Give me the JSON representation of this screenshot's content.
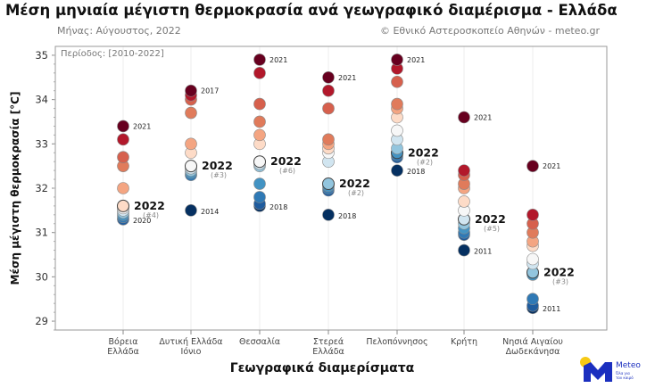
{
  "title": "Μέση μηνιαία μέγιστη θερμοκρασία ανά γεωγραφικό διαμέρισμα - Ελλάδα",
  "subtitle_left": "Μήνας: Αύγουστος, 2022",
  "subtitle_right": "© Εθνικό Αστεροσκοπείο Αθηνών - meteo.gr",
  "logo": {
    "text": "Meteo",
    "tagline": "Όλα για τον καιρό"
  },
  "chart_data": {
    "type": "scatter",
    "period_label": "Περίοδος: [2010-2022]",
    "xlabel": "Γεωγραφικά διαμερίσματα",
    "ylabel": "Μέση μέγιστη θερμοκρασία [°C]",
    "ylim": [
      28.8,
      35.2
    ],
    "yticks": [
      29,
      30,
      31,
      32,
      33,
      34,
      35
    ],
    "grid": "vertical",
    "palette_low_to_high": [
      "#053061",
      "#1f5c9e",
      "#2f79b5",
      "#4393c3",
      "#92c5de",
      "#d1e5f0",
      "#f7f7f7",
      "#fddbc7",
      "#f4a582",
      "#e07b5b",
      "#d6604d",
      "#b2182b",
      "#67001f"
    ],
    "highlight_color": "#111111",
    "categories": [
      {
        "label": [
          "Βόρεια",
          "Ελλάδα"
        ],
        "values": [
          33.4,
          33.1,
          32.7,
          32.5,
          32.0,
          31.6,
          31.55,
          31.5,
          31.45,
          31.4,
          31.35,
          31.3,
          31.3
        ],
        "max_year": "2021",
        "min_year": "2020",
        "value_2022": 31.6,
        "rank_2022": "(#4)"
      },
      {
        "label": [
          "Δυτική Ελλάδα",
          "Ιόνιο"
        ],
        "values": [
          34.2,
          34.1,
          34.0,
          33.7,
          33.0,
          32.8,
          32.5,
          32.45,
          32.4,
          32.35,
          32.3,
          32.3,
          31.5
        ],
        "max_year": "2017",
        "min_year": "2014",
        "value_2022": 32.5,
        "rank_2022": "(#3)"
      },
      {
        "label": [
          "Θεσσαλία"
        ],
        "values": [
          34.9,
          34.6,
          33.9,
          33.5,
          33.2,
          33.0,
          32.6,
          32.55,
          32.5,
          32.1,
          31.8,
          31.65,
          31.6
        ],
        "max_year": "2021",
        "min_year": "2018",
        "value_2022": 32.6,
        "rank_2022": "(#6)"
      },
      {
        "label": [
          "Στερεά",
          "Ελλάδα"
        ],
        "values": [
          34.5,
          34.2,
          33.8,
          33.1,
          33.0,
          32.9,
          32.8,
          32.6,
          32.1,
          32.05,
          32.0,
          31.95,
          31.4
        ],
        "max_year": "2021",
        "min_year": "2018",
        "value_2022": 32.1,
        "rank_2022": "(#2)"
      },
      {
        "label": [
          "Πελοπόννησος"
        ],
        "values": [
          34.9,
          34.7,
          34.4,
          33.9,
          33.8,
          33.6,
          33.3,
          33.1,
          32.9,
          32.8,
          32.75,
          32.7,
          32.4
        ],
        "max_year": "2021",
        "min_year": "2018",
        "value_2022": 32.8,
        "rank_2022": "(#2)"
      },
      {
        "label": [
          "Κρήτη"
        ],
        "values": [
          33.6,
          32.4,
          32.3,
          32.1,
          32.0,
          31.7,
          31.5,
          31.3,
          31.2,
          31.1,
          31.0,
          30.95,
          30.6
        ],
        "max_year": "2021",
        "min_year": "2011",
        "value_2022": 31.3,
        "rank_2022": "(#5)"
      },
      {
        "label": [
          "Νησιά Αιγαίου",
          "Δωδεκάνησα"
        ],
        "values": [
          32.5,
          31.4,
          31.2,
          31.0,
          30.8,
          30.7,
          30.4,
          30.3,
          30.1,
          30.05,
          29.5,
          29.35,
          29.3
        ],
        "max_year": "2021",
        "min_year": "2011",
        "value_2022": 30.1,
        "rank_2022": "(#3)"
      }
    ],
    "label_2022": "2022"
  }
}
